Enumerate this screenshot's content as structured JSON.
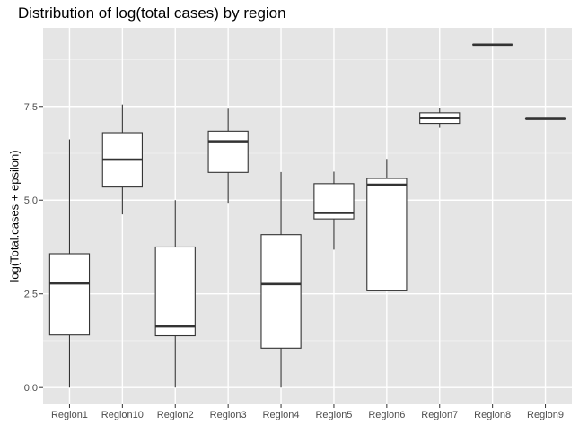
{
  "chart_data": {
    "type": "boxplot",
    "title": "Distribution of log(total cases) by region",
    "xlabel": "",
    "ylabel": "log(Total.cases + epsilon)",
    "categories": [
      "Region1",
      "Region10",
      "Region2",
      "Region3",
      "Region4",
      "Region5",
      "Region6",
      "Region7",
      "Region8",
      "Region9"
    ],
    "boxes": [
      {
        "category": "Region1",
        "min": 0.0,
        "q1": 1.4,
        "median": 2.78,
        "q3": 3.57,
        "max": 6.62
      },
      {
        "category": "Region10",
        "min": 4.62,
        "q1": 5.35,
        "median": 6.08,
        "q3": 6.8,
        "max": 7.55
      },
      {
        "category": "Region2",
        "min": 0.0,
        "q1": 1.38,
        "median": 1.63,
        "q3": 3.75,
        "max": 5.0
      },
      {
        "category": "Region3",
        "min": 4.93,
        "q1": 5.74,
        "median": 6.57,
        "q3": 6.84,
        "max": 7.44
      },
      {
        "category": "Region4",
        "min": 0.0,
        "q1": 1.05,
        "median": 2.76,
        "q3": 4.08,
        "max": 5.75
      },
      {
        "category": "Region5",
        "min": 3.68,
        "q1": 4.5,
        "median": 4.66,
        "q3": 5.44,
        "max": 5.76
      },
      {
        "category": "Region6",
        "min": 2.58,
        "q1": 2.58,
        "median": 5.41,
        "q3": 5.58,
        "max": 6.1
      },
      {
        "category": "Region7",
        "min": 6.93,
        "q1": 7.05,
        "median": 7.19,
        "q3": 7.33,
        "max": 7.45
      },
      {
        "category": "Region8",
        "min": 9.15,
        "q1": 9.15,
        "median": 9.15,
        "q3": 9.15,
        "max": 9.15
      },
      {
        "category": "Region9",
        "min": 7.17,
        "q1": 7.17,
        "median": 7.17,
        "q3": 7.17,
        "max": 7.17
      }
    ],
    "yticks": [
      0.0,
      2.5,
      5.0,
      7.5
    ],
    "ytick_labels": [
      "0.0",
      "2.5",
      "5.0",
      "7.5"
    ],
    "ylim": [
      -0.45,
      9.6
    ],
    "grid": true,
    "legend": "none",
    "colors": {
      "panel_background": "#e5e5e5",
      "grid_major": "#ffffff",
      "grid_minor": "#f2f2f2",
      "box_fill": "#ffffff",
      "box_line": "#333333",
      "tick_text": "#4d4d4d",
      "tick_mark": "#333333"
    }
  }
}
